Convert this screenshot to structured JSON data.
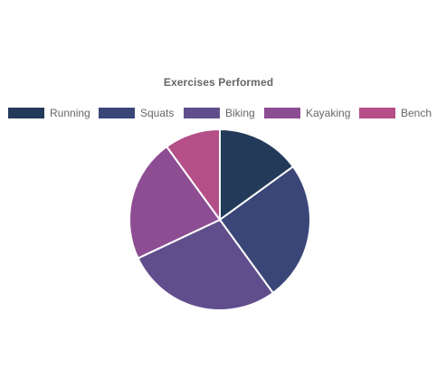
{
  "chart_data": {
    "type": "pie",
    "title": "Exercises Performed",
    "legend_position": "top",
    "categories": [
      "Running",
      "Squats",
      "Biking",
      "Kayaking",
      "Bench"
    ],
    "values": [
      15,
      25,
      28,
      22,
      10
    ],
    "colors": [
      "#233a5a",
      "#3a4678",
      "#604e8c",
      "#8d4d93",
      "#b44f88"
    ],
    "start_angle_deg": -90
  }
}
